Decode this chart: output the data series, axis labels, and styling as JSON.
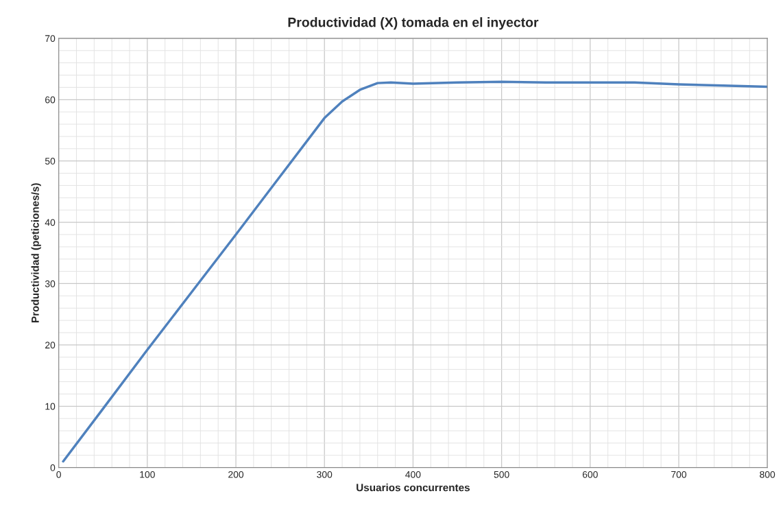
{
  "chart_data": {
    "type": "line",
    "title": "Productividad (X) tomada en el inyector",
    "xlabel": "Usuarios concurrentes",
    "ylabel": "Productividad (peticiones/s)",
    "series": [
      {
        "color": "#4f81bd",
        "x": [
          5,
          50,
          100,
          150,
          200,
          250,
          300,
          320,
          340,
          360,
          375,
          400,
          450,
          500,
          550,
          600,
          650,
          700,
          750,
          800
        ],
        "values": [
          1,
          9.6,
          19.2,
          28.6,
          38,
          47.5,
          57,
          59.7,
          61.6,
          62.7,
          62.8,
          62.6,
          62.8,
          62.9,
          62.8,
          62.8,
          62.8,
          62.5,
          62.3,
          62.1
        ]
      }
    ],
    "xlim": [
      0,
      800
    ],
    "xticks": [
      0,
      100,
      200,
      300,
      400,
      500,
      600,
      700,
      800
    ],
    "ylim": [
      0,
      70
    ],
    "yticks": [
      0,
      10,
      20,
      30,
      40,
      50,
      60,
      70
    ],
    "grid": true,
    "legend": false,
    "marker": "none",
    "line_style": "solid"
  }
}
